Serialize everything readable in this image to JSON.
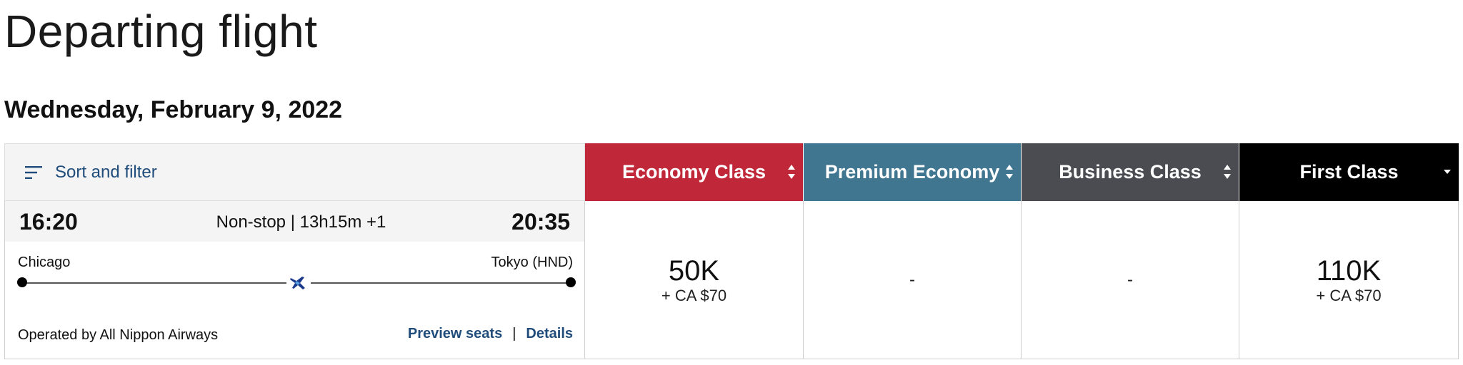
{
  "page": {
    "title": "Departing flight",
    "date": "Wednesday, February 9, 2022"
  },
  "sort_filter": {
    "label": "Sort and filter",
    "icon": "filter-lines-icon"
  },
  "flight": {
    "departure_time": "16:20",
    "arrival_time": "20:35",
    "stop_info": "Non-stop | 13h15m +1",
    "origin": "Chicago",
    "destination": "Tokyo (HND)",
    "operated_by": "Operated by All Nippon Airways",
    "preview_seats_label": "Preview seats",
    "separator": "|",
    "details_label": "Details",
    "airline_icon": "ana-plane-icon"
  },
  "cabins": [
    {
      "label": "Economy Class",
      "color": "#c0283a",
      "sort_icon": "sort-updown-icon",
      "miles": "50K",
      "tax": "+ CA $70"
    },
    {
      "label": "Premium Economy",
      "color": "#417690",
      "sort_icon": "sort-updown-icon",
      "miles": "-",
      "tax": ""
    },
    {
      "label": "Business Class",
      "color": "#4b4c51",
      "sort_icon": "sort-updown-icon",
      "miles": "-",
      "tax": ""
    },
    {
      "label": "First Class",
      "color": "#000000",
      "sort_icon": "sort-down-icon",
      "miles": "110K",
      "tax": "+ CA $70"
    }
  ],
  "colors": {
    "link": "#1f4c7a",
    "panel_bg": "#f4f4f4"
  }
}
